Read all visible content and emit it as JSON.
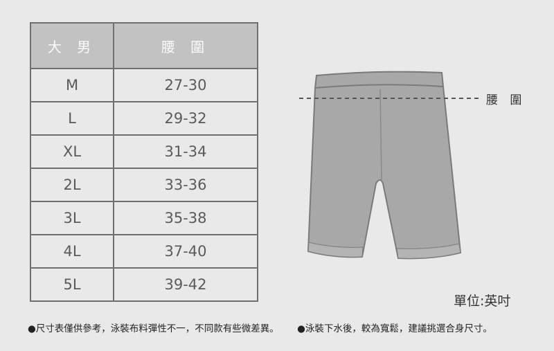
{
  "table": {
    "headers": [
      "大 男",
      "腰 圍"
    ],
    "rows": [
      {
        "size": "M",
        "waist": "27-30"
      },
      {
        "size": "L",
        "waist": "29-32"
      },
      {
        "size": "XL",
        "waist": "31-34"
      },
      {
        "size": "2L",
        "waist": "33-36"
      },
      {
        "size": "3L",
        "waist": "35-38"
      },
      {
        "size": "4L",
        "waist": "37-40"
      },
      {
        "size": "5L",
        "waist": "39-42"
      }
    ]
  },
  "diagram": {
    "waist_label": "腰 圍",
    "garment_icon": "shorts-icon"
  },
  "unit": "單位:英吋",
  "notes": [
    "●尺寸表僅供參考，泳裝布料彈性不一，不同款有些微差異。",
    "●泳裝下水後，較為寬鬆，建議挑選合身尺寸。"
  ]
}
